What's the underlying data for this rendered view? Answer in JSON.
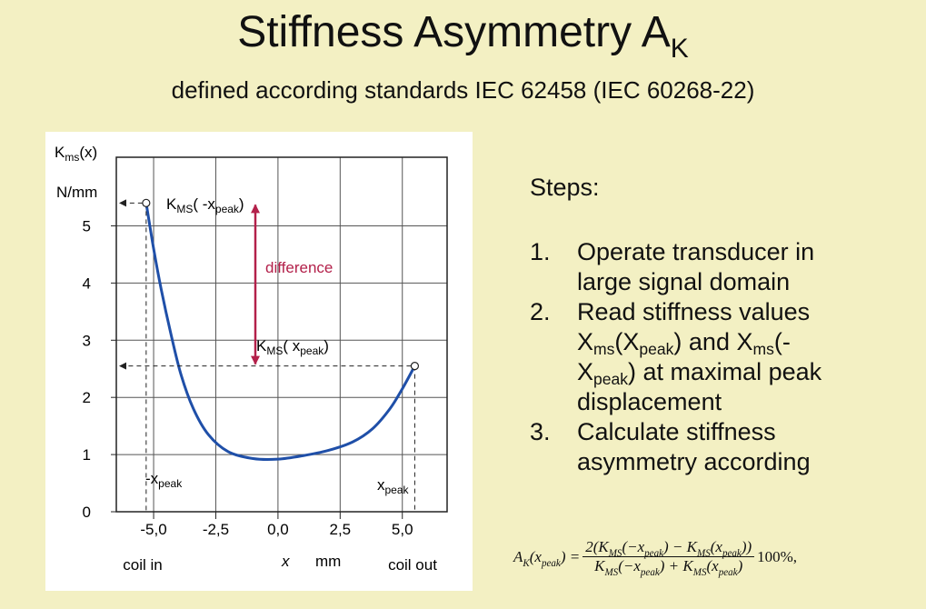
{
  "title": [
    "Stiffness Asymmetry A",
    "K"
  ],
  "subtitle": "defined according standards  IEC 62458 (IEC 60268-22)",
  "chart_data": {
    "type": "line",
    "y_label": [
      "K",
      "ms",
      "(x)"
    ],
    "y_unit": "N/mm",
    "x_label": "x",
    "x_unit": "mm",
    "x_end_labels": [
      "coil in",
      "coil out"
    ],
    "xlim": [
      -6.5,
      6.8
    ],
    "ylim": [
      0,
      6.2
    ],
    "xticks": [
      {
        "value": -5,
        "label": "-5,0"
      },
      {
        "value": -2.5,
        "label": "-2,5"
      },
      {
        "value": 0,
        "label": "0,0"
      },
      {
        "value": 2.5,
        "label": "2,5"
      },
      {
        "value": 5,
        "label": "5,0"
      }
    ],
    "yticks": [
      0,
      1,
      2,
      3,
      4,
      5
    ],
    "grid": true,
    "series": [
      {
        "color": "#1f4fa8",
        "x": [
          -5.3,
          -5.0,
          -4.7,
          -4.3,
          -3.9,
          -3.4,
          -2.8,
          -2.0,
          -1.0,
          0,
          1.0,
          2.0,
          3.0,
          3.8,
          4.5,
          5.0,
          5.5
        ],
        "values": [
          5.4,
          4.6,
          3.9,
          3.1,
          2.4,
          1.8,
          1.35,
          1.05,
          0.93,
          0.92,
          0.98,
          1.07,
          1.22,
          1.45,
          1.8,
          2.15,
          2.55
        ]
      }
    ],
    "annotations": {
      "k_neg": [
        "K",
        "MS",
        "( -x",
        "peak",
        ")"
      ],
      "k_pos": [
        "K",
        "MS",
        "( x",
        "peak",
        ")"
      ],
      "difference": "difference",
      "neg_peak": [
        "-x",
        "peak"
      ],
      "pos_peak": [
        "x",
        "peak"
      ]
    }
  },
  "steps": {
    "heading": "Steps:",
    "items": [
      {
        "number": "1.",
        "text": [
          "Operate transducer in large signal domain"
        ]
      },
      {
        "number": "2.",
        "text": [
          "Read stiffness values X",
          "ms",
          "(X",
          "peak",
          ") and X",
          "ms",
          "(-X",
          "peak",
          ") at maximal peak displacement"
        ]
      },
      {
        "number": "3.",
        "text": [
          "Calculate stiffness asymmetry according"
        ]
      }
    ]
  },
  "formula": {
    "lhs": [
      "A",
      "K",
      "(x",
      "peak",
      ") ="
    ],
    "numerator": [
      "2(K",
      "MS",
      "(−x",
      "peak",
      ") − K",
      "MS",
      "(x",
      "peak",
      "))"
    ],
    "denominator": [
      "K",
      "MS",
      "(−x",
      "peak",
      ") + K",
      "MS",
      "(x",
      "peak",
      ")"
    ],
    "suffix": "100%,"
  }
}
